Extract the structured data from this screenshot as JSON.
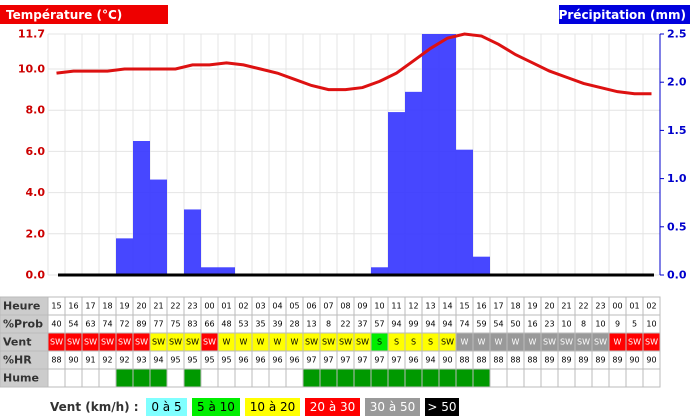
{
  "chart_data": {
    "type": "combo",
    "title_left": "Température (°C)",
    "title_right": "Précipitation (mm)",
    "categories": [
      "15",
      "16",
      "17",
      "18",
      "19",
      "20",
      "21",
      "22",
      "23",
      "00",
      "01",
      "02",
      "03",
      "04",
      "05",
      "06",
      "07",
      "08",
      "09",
      "10",
      "11",
      "12",
      "13",
      "14",
      "15",
      "16",
      "17",
      "18",
      "19",
      "20",
      "21",
      "22",
      "23",
      "00",
      "01",
      "02"
    ],
    "series": [
      {
        "type": "line",
        "color": "#dd1111",
        "values": [
          9.8,
          9.9,
          9.9,
          9.9,
          10.0,
          10.0,
          10.0,
          10.0,
          10.2,
          10.2,
          10.3,
          10.2,
          10.0,
          9.8,
          9.5,
          9.2,
          9.0,
          9.0,
          9.1,
          9.4,
          9.8,
          10.4,
          11.0,
          11.5,
          11.7,
          11.6,
          11.2,
          10.7,
          10.3,
          9.9,
          9.6,
          9.3,
          9.1,
          8.9,
          8.8,
          8.8
        ]
      },
      {
        "type": "bar",
        "axis": "y2",
        "color": "#3333ff",
        "values": [
          0,
          0,
          0,
          0,
          0.38,
          1.39,
          0.99,
          0,
          0.68,
          0.08,
          0.08,
          0,
          0,
          0,
          0,
          0,
          0,
          0,
          0,
          0.08,
          1.69,
          1.9,
          2.5,
          2.5,
          1.3,
          0.19,
          0,
          0,
          0,
          0,
          0,
          0,
          0,
          0,
          0,
          0
        ]
      }
    ],
    "ylim": [
      0,
      11.7
    ],
    "yticks": [
      {
        "value": 0,
        "label": "0.0"
      },
      {
        "value": 2,
        "label": "2.0"
      },
      {
        "value": 4,
        "label": "4.0"
      },
      {
        "value": 6,
        "label": "6.0"
      },
      {
        "value": 8,
        "label": "8.0"
      },
      {
        "value": 10,
        "label": "10.0"
      },
      11.7
    ],
    "y2lim": [
      0,
      2.5
    ],
    "y2ticks": [
      {
        "value": 0,
        "label": "0.0"
      },
      0.5,
      {
        "value": 1,
        "label": "1.0"
      },
      1.5,
      {
        "value": 2,
        "label": "2.0"
      },
      2.5
    ],
    "grid": true
  },
  "table": {
    "header_label": "Heure",
    "rows": [
      {
        "label": "%Prob",
        "values": [
          40,
          54,
          63,
          74,
          72,
          89,
          77,
          75,
          83,
          66,
          48,
          53,
          35,
          39,
          28,
          13,
          8,
          22,
          37,
          57,
          94,
          99,
          94,
          94,
          74,
          59,
          54,
          50,
          16,
          23,
          10,
          8,
          10,
          9,
          5,
          10
        ]
      },
      {
        "label": "Vent",
        "values": [
          "SW",
          "SW",
          "SW",
          "SW",
          "SW",
          "SW",
          "SW",
          "SW",
          "SW",
          "SW",
          "W",
          "W",
          "W",
          "W",
          "W",
          "SW",
          "SW",
          "SW",
          "SW",
          "S",
          "S",
          "S",
          "S",
          "SW",
          "W",
          "W",
          "W",
          "W",
          "W",
          "SW",
          "SW",
          "SW",
          "SW",
          "W",
          "SW",
          "SW"
        ],
        "colors": [
          "#ff0000",
          "#ff0000",
          "#ff0000",
          "#ff0000",
          "#ff0000",
          "#ff0000",
          "#ffff00",
          "#ffff00",
          "#ffff00",
          "#ff0000",
          "#ffff00",
          "#ffff00",
          "#ffff00",
          "#ffff00",
          "#ffff00",
          "#ffff00",
          "#ffff00",
          "#ffff00",
          "#ffff00",
          "#00ee00",
          "#ffff00",
          "#ffff00",
          "#ffff00",
          "#ffff00",
          "#999999",
          "#999999",
          "#999999",
          "#999999",
          "#999999",
          "#999999",
          "#999999",
          "#999999",
          "#999999",
          "#ff0000",
          "#ff0000",
          "#ff0000"
        ]
      },
      {
        "label": "%HR",
        "values": [
          88,
          90,
          91,
          92,
          92,
          93,
          94,
          95,
          95,
          95,
          95,
          96,
          96,
          96,
          96,
          97,
          97,
          97,
          97,
          97,
          97,
          96,
          94,
          90,
          88,
          88,
          88,
          88,
          88,
          89,
          89,
          89,
          89,
          89,
          90,
          90
        ]
      },
      {
        "label": "Hume",
        "colors": [
          null,
          null,
          null,
          null,
          "#009900",
          "#009900",
          "#009900",
          null,
          "#009900",
          null,
          null,
          null,
          null,
          null,
          null,
          "#009900",
          "#009900",
          "#009900",
          "#009900",
          "#009900",
          "#009900",
          "#009900",
          "#009900",
          "#009900",
          "#009900",
          "#009900",
          null,
          null,
          null,
          null,
          null,
          null,
          null,
          null,
          null,
          null
        ]
      }
    ]
  },
  "legend": {
    "label": "Vent (km/h) :",
    "items": [
      {
        "label": "0 à 5",
        "color": "#80ffff",
        "text_color": "#000000"
      },
      {
        "label": "5 à 10",
        "color": "#00ee00",
        "text_color": "#000000"
      },
      {
        "label": "10 à 20",
        "color": "#ffff00",
        "text_color": "#000000"
      },
      {
        "label": "20 à 30",
        "color": "#ff0000",
        "text_color": "#ffffff"
      },
      {
        "label": "30 à 50",
        "color": "#999999",
        "text_color": "#ffffff"
      },
      {
        "label": "> 50",
        "color": "#000000",
        "text_color": "#ffffff"
      }
    ]
  }
}
